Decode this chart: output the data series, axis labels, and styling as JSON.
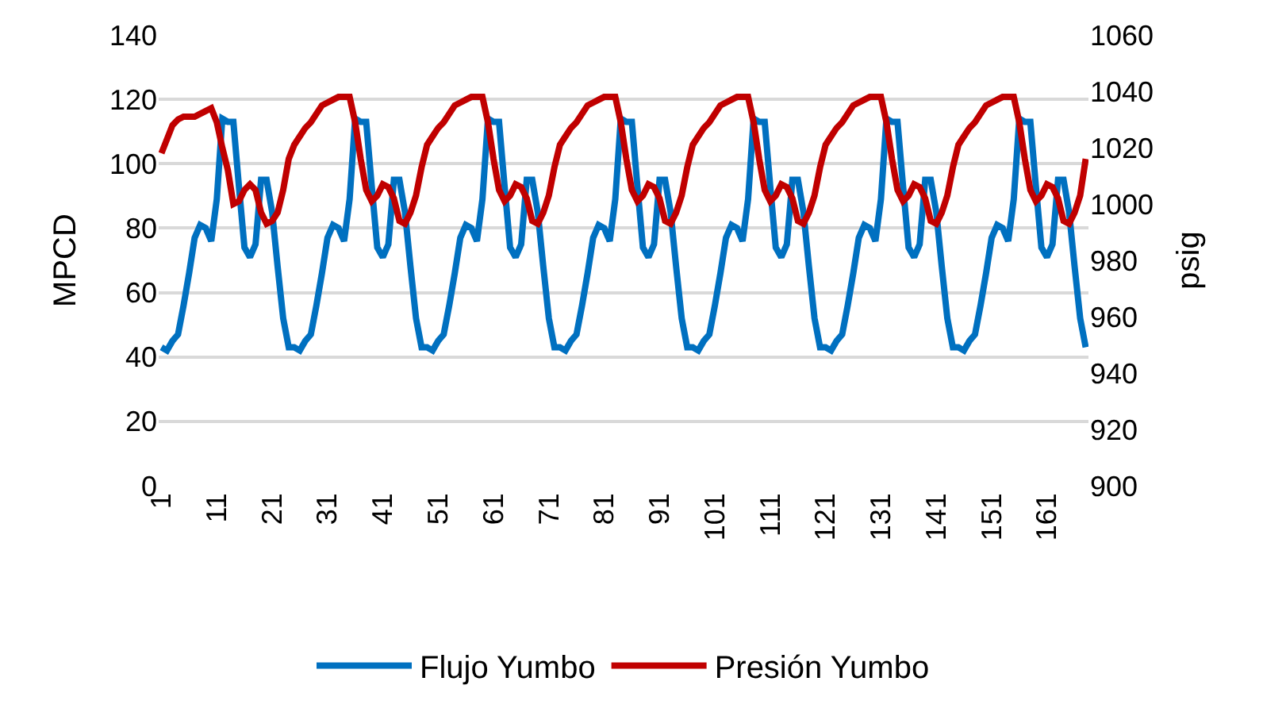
{
  "chart_data": {
    "type": "line",
    "categories": [
      "1",
      null,
      null,
      null,
      null,
      null,
      null,
      null,
      null,
      null,
      "11",
      null,
      null,
      null,
      null,
      null,
      null,
      null,
      null,
      null,
      "21",
      null,
      null,
      null,
      null,
      null,
      null,
      null,
      null,
      null,
      "31",
      null,
      null,
      null,
      null,
      null,
      null,
      null,
      null,
      null,
      "41",
      null,
      null,
      null,
      null,
      null,
      null,
      null,
      null,
      null,
      "51",
      null,
      null,
      null,
      null,
      null,
      null,
      null,
      null,
      null,
      "61",
      null,
      null,
      null,
      null,
      null,
      null,
      null,
      null,
      null,
      "71",
      null,
      null,
      null,
      null,
      null,
      null,
      null,
      null,
      null,
      "81",
      null,
      null,
      null,
      null,
      null,
      null,
      null,
      null,
      null,
      "91",
      null,
      null,
      null,
      null,
      null,
      null,
      null,
      null,
      null,
      "101",
      null,
      null,
      null,
      null,
      null,
      null,
      null,
      null,
      null,
      "111",
      null,
      null,
      null,
      null,
      null,
      null,
      null,
      null,
      null,
      "121",
      null,
      null,
      null,
      null,
      null,
      null,
      null,
      null,
      null,
      "131",
      null,
      null,
      null,
      null,
      null,
      null,
      null,
      null,
      null,
      "141",
      null,
      null,
      null,
      null,
      null,
      null,
      null,
      null,
      null,
      "151",
      null,
      null,
      null,
      null,
      null,
      null,
      null,
      null,
      null,
      "161",
      null,
      null,
      null,
      null,
      null,
      null,
      null
    ],
    "series": [
      {
        "name": "Flujo Yumbo",
        "color": "#0070c0",
        "values": [
          43,
          42,
          45,
          47,
          56,
          66,
          77,
          81,
          80,
          76,
          89,
          114,
          113,
          113,
          93,
          74,
          71,
          75,
          95,
          95,
          85,
          68,
          52,
          43,
          43,
          42,
          45,
          47,
          56,
          66,
          77,
          81,
          80,
          76,
          89,
          114,
          113,
          113,
          93,
          74,
          71,
          75,
          95,
          95,
          85,
          68,
          52,
          43,
          43,
          42,
          45,
          47,
          56,
          66,
          77,
          81,
          80,
          76,
          89,
          114,
          113,
          113,
          93,
          74,
          71,
          75,
          95,
          95,
          85,
          68,
          52,
          43,
          43,
          42,
          45,
          47,
          56,
          66,
          77,
          81,
          80,
          76,
          89,
          114,
          113,
          113,
          93,
          74,
          71,
          75,
          95,
          95,
          85,
          68,
          52,
          43,
          43,
          42,
          45,
          47,
          56,
          66,
          77,
          81,
          80,
          76,
          89,
          114,
          113,
          113,
          93,
          74,
          71,
          75,
          95,
          95,
          85,
          68,
          52,
          43,
          43,
          42,
          45,
          47,
          56,
          66,
          77,
          81,
          80,
          76,
          89,
          114,
          113,
          113,
          93,
          74,
          71,
          75,
          95,
          95,
          85,
          68,
          52,
          43,
          43,
          42,
          45,
          47,
          56,
          66,
          77,
          81,
          80,
          76,
          89,
          114,
          113,
          113,
          93,
          74,
          71,
          75,
          95,
          95,
          85,
          68,
          52,
          43
        ]
      },
      {
        "name": "Presión Yumbo",
        "color": "#c00000",
        "axis": "y2",
        "values": [
          1018,
          1023,
          1028,
          1030,
          1031,
          1031,
          1031,
          1032,
          1033,
          1034,
          1029,
          1020,
          1012,
          1000,
          1001,
          1005,
          1007,
          1005,
          997,
          993,
          994,
          997,
          1005,
          1016,
          1021,
          1024,
          1027,
          1029,
          1032,
          1035,
          1036,
          1037,
          1038,
          1038,
          1038,
          1029,
          1016,
          1005,
          1001,
          1003,
          1007,
          1006,
          1002,
          994,
          993,
          997,
          1003,
          1013,
          1021,
          1024,
          1027,
          1029,
          1032,
          1035,
          1036,
          1037,
          1038,
          1038,
          1038,
          1029,
          1016,
          1005,
          1001,
          1003,
          1007,
          1006,
          1002,
          994,
          993,
          997,
          1003,
          1013,
          1021,
          1024,
          1027,
          1029,
          1032,
          1035,
          1036,
          1037,
          1038,
          1038,
          1038,
          1029,
          1016,
          1005,
          1001,
          1003,
          1007,
          1006,
          1002,
          994,
          993,
          997,
          1003,
          1013,
          1021,
          1024,
          1027,
          1029,
          1032,
          1035,
          1036,
          1037,
          1038,
          1038,
          1038,
          1029,
          1016,
          1005,
          1001,
          1003,
          1007,
          1006,
          1002,
          994,
          993,
          997,
          1003,
          1013,
          1021,
          1024,
          1027,
          1029,
          1032,
          1035,
          1036,
          1037,
          1038,
          1038,
          1038,
          1029,
          1016,
          1005,
          1001,
          1003,
          1007,
          1006,
          1002,
          994,
          993,
          997,
          1003,
          1013,
          1021,
          1024,
          1027,
          1029,
          1032,
          1035,
          1036,
          1037,
          1038,
          1038,
          1038,
          1029,
          1016,
          1005,
          1001,
          1003,
          1007,
          1006,
          1002,
          994,
          993,
          997,
          1003,
          1016
        ]
      }
    ],
    "ylabel": "MPCD",
    "y2label": "psig",
    "ylim": [
      0,
      140
    ],
    "yticks": [
      0,
      20,
      40,
      60,
      80,
      100,
      120,
      140
    ],
    "y2lim": [
      900,
      1060
    ],
    "y2ticks": [
      900,
      920,
      940,
      960,
      980,
      1000,
      1020,
      1040,
      1060
    ],
    "grid": "y",
    "legend": "bottom",
    "marker": "none",
    "line_style": "solid"
  }
}
